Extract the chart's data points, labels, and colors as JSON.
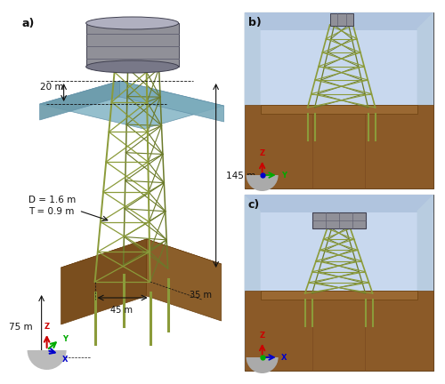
{
  "fig_width": 4.74,
  "fig_height": 4.13,
  "bg_color": "#ffffff",
  "label_a": "a)",
  "label_b": "b)",
  "label_c": "c)",
  "annotations": {
    "dim_20m": "20 m",
    "dim_145m": "145 m",
    "dim_D": "D = 1.6 m",
    "dim_T": "T = 0.9 m",
    "dim_45m": "45 m",
    "dim_35m": "35 m",
    "dim_75m": "75 m"
  },
  "colors": {
    "jacket": "#8b9b3a",
    "jacket_dark": "#6b7a2a",
    "topside_gray": "#909098",
    "topside_mid": "#787888",
    "topside_light": "#b0b0c0",
    "sea_top": "#8ab8c8",
    "sea_front": "#7aaabb",
    "sea_side": "#6a9aaa",
    "ground_top": "#a07038",
    "ground_front": "#8b5e2a",
    "ground_side": "#7a4e1e",
    "ground_dark": "#6b4010",
    "sky_light": "#c8d8ee",
    "sky_dark": "#b0c4de",
    "ground_panel": "#8b5a28",
    "ground_panel_top": "#9a6832",
    "ground_panel_dark": "#7a4a20",
    "text_color": "#111111",
    "box_outline": "#555555"
  },
  "font_sizes": {
    "label": 9,
    "annotation": 7.5,
    "axis_label": 6.5
  }
}
